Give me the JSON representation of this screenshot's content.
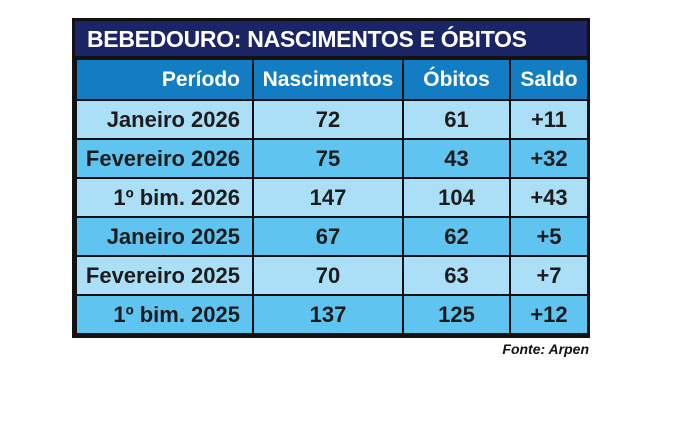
{
  "chart_data": {
    "type": "table",
    "title": "BEBEDOURO: NASCIMENTOS E ÓBITOS",
    "columns": [
      "Período",
      "Nascimentos",
      "Óbitos",
      "Saldo"
    ],
    "rows": [
      [
        "Janeiro 2026",
        "72",
        "61",
        "+11"
      ],
      [
        "Fevereiro 2026",
        "75",
        "43",
        "+32"
      ],
      [
        "1º bim. 2026",
        "147",
        "104",
        "+43"
      ],
      [
        "Janeiro 2025",
        "67",
        "62",
        "+5"
      ],
      [
        "Fevereiro 2025",
        "70",
        "63",
        "+7"
      ],
      [
        "1º bim. 2025",
        "137",
        "125",
        "+12"
      ]
    ],
    "source": "Fonte: Arpen",
    "layout": {
      "row_striping": [
        "light",
        "mid",
        "light",
        "mid",
        "light",
        "mid"
      ],
      "periodo_alignment": "right",
      "value_alignment": "center"
    }
  },
  "colors": {
    "title_bg": "#1b2566",
    "title_text": "#ffffff",
    "header_bg": "#127dc2",
    "header_text": "#ffffff",
    "row_light": "#abdff7",
    "row_mid": "#5fc4f0",
    "cell_text": "#1c1c1c",
    "border": "#121212",
    "page_bg": "#ffffff"
  }
}
